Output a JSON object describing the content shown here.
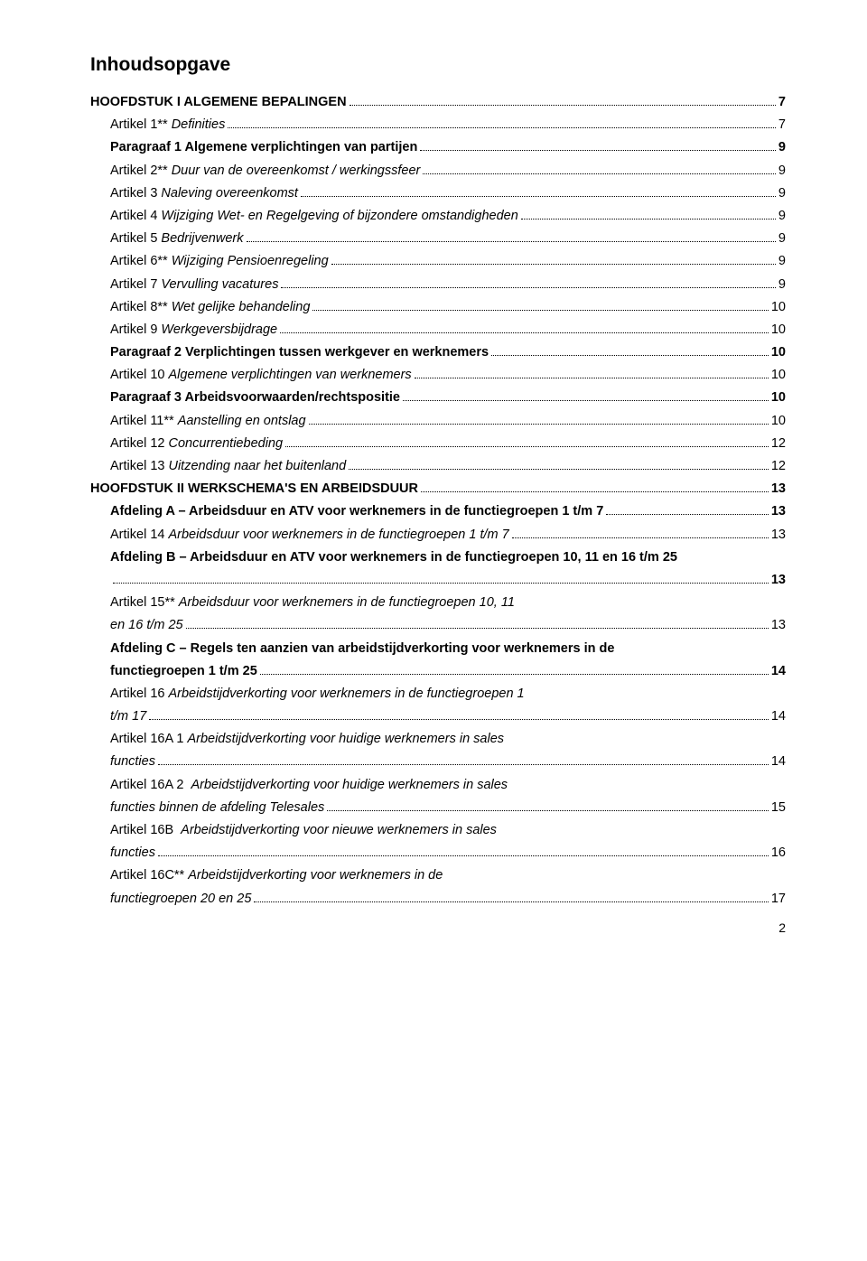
{
  "title": "Inhoudsopgave",
  "footerPage": "2",
  "toc": [
    {
      "level": 0,
      "bold": true,
      "plain": "HOOFDSTUK I ALGEMENE BEPALINGEN",
      "italic": "",
      "page": "7"
    },
    {
      "level": 1,
      "bold": false,
      "plain": "Artikel 1** ",
      "italic": "Definities",
      "page": "7"
    },
    {
      "level": 1,
      "bold": true,
      "plain": "Paragraaf 1 Algemene verplichtingen van partijen",
      "italic": "",
      "page": "9"
    },
    {
      "level": 1,
      "bold": false,
      "plain": "Artikel 2** ",
      "italic": "Duur van de overeenkomst / werkingssfeer",
      "page": "9"
    },
    {
      "level": 1,
      "bold": false,
      "plain": "Artikel 3 ",
      "italic": "Naleving overeenkomst",
      "page": "9"
    },
    {
      "level": 1,
      "bold": false,
      "plain": "Artikel 4 ",
      "italic": "Wijziging Wet- en Regelgeving of bijzondere omstandigheden",
      "page": "9"
    },
    {
      "level": 1,
      "bold": false,
      "plain": "Artikel 5 ",
      "italic": "Bedrijvenwerk",
      "page": "9"
    },
    {
      "level": 1,
      "bold": false,
      "plain": "Artikel 6** ",
      "italic": "Wijziging Pensioenregeling",
      "page": "9"
    },
    {
      "level": 1,
      "bold": false,
      "plain": "Artikel 7 ",
      "italic": "Vervulling vacatures",
      "page": "9"
    },
    {
      "level": 1,
      "bold": false,
      "plain": "Artikel 8** ",
      "italic": "Wet gelijke behandeling",
      "page": "10"
    },
    {
      "level": 1,
      "bold": false,
      "plain": "Artikel 9 ",
      "italic": "Werkgeversbijdrage",
      "page": "10"
    },
    {
      "level": 1,
      "bold": true,
      "plain": "Paragraaf 2 Verplichtingen tussen werkgever en werknemers",
      "italic": "",
      "page": "10"
    },
    {
      "level": 1,
      "bold": false,
      "plain": "Artikel 10 ",
      "italic": "Algemene verplichtingen van werknemers",
      "page": "10"
    },
    {
      "level": 1,
      "bold": true,
      "plain": "Paragraaf 3 Arbeidsvoorwaarden/rechtspositie",
      "italic": "",
      "page": "10"
    },
    {
      "level": 1,
      "bold": false,
      "plain": "Artikel 11** ",
      "italic": "Aanstelling en ontslag",
      "page": "10"
    },
    {
      "level": 1,
      "bold": false,
      "plain": "Artikel 12 ",
      "italic": "Concurrentiebeding",
      "page": "12"
    },
    {
      "level": 1,
      "bold": false,
      "plain": "Artikel 13 ",
      "italic": "Uitzending naar het buitenland",
      "page": "12"
    },
    {
      "level": 0,
      "bold": true,
      "plain": "HOOFDSTUK II WERKSCHEMA'S EN ARBEIDSDUUR",
      "italic": "",
      "page": "13"
    },
    {
      "level": 1,
      "bold": true,
      "plain": "Afdeling A – Arbeidsduur en ATV voor werknemers in de functiegroepen 1 t/m 7",
      "italic": "",
      "page": "13"
    },
    {
      "level": 1,
      "bold": false,
      "plain": "Artikel 14 ",
      "italic": "Arbeidsduur voor werknemers in de functiegroepen 1 t/m 7",
      "page": "13"
    },
    {
      "level": 1,
      "bold": true,
      "plain": "Afdeling B – Arbeidsduur en ATV voor werknemers in de functiegroepen 10, 11 en 16 t/m 25",
      "italic": "",
      "page": "",
      "multiline_first": true
    },
    {
      "level": 1,
      "bold": true,
      "plain": "",
      "italic": "",
      "page": "13",
      "multiline_cont": true
    },
    {
      "level": 1,
      "bold": false,
      "plain": "Artikel 15** ",
      "italic": "Arbeidsduur voor werknemers in de functiegroepen 10, 11",
      "page": "",
      "multiline_first": true
    },
    {
      "level": 1,
      "bold": false,
      "plain": "",
      "italic": "en 16 t/m 25",
      "page": "13",
      "multiline_cont": true
    },
    {
      "level": 1,
      "bold": true,
      "plain": "Afdeling C – Regels ten aanzien van arbeidstijdverkorting voor werknemers in de",
      "italic": "",
      "page": "",
      "multiline_first": true
    },
    {
      "level": 1,
      "bold": true,
      "plain": "functiegroepen 1 t/m 25",
      "italic": "",
      "page": "14",
      "multiline_cont": true
    },
    {
      "level": 1,
      "bold": false,
      "plain": "Artikel 16 ",
      "italic": "Arbeidstijdverkorting voor werknemers in de functiegroepen 1",
      "page": "",
      "multiline_first": true
    },
    {
      "level": 1,
      "bold": false,
      "plain": "",
      "italic": "t/m 17",
      "page": "14",
      "multiline_cont": true
    },
    {
      "level": 1,
      "bold": false,
      "plain": "Artikel 16A 1 ",
      "italic": "Arbeidstijdverkorting voor huidige werknemers in sales",
      "page": "",
      "multiline_first": true
    },
    {
      "level": 1,
      "bold": false,
      "plain": "",
      "italic": "functies",
      "page": "14",
      "multiline_cont": true
    },
    {
      "level": 1,
      "bold": false,
      "plain": "Artikel 16A 2  ",
      "italic": "Arbeidstijdverkorting voor huidige werknemers in sales",
      "page": "",
      "multiline_first": true
    },
    {
      "level": 1,
      "bold": false,
      "plain": "",
      "italic": "functies binnen de afdeling Telesales",
      "page": "15",
      "multiline_cont": true
    },
    {
      "level": 1,
      "bold": false,
      "plain": "Artikel 16B  ",
      "italic": "Arbeidstijdverkorting voor nieuwe werknemers in sales",
      "page": "",
      "multiline_first": true
    },
    {
      "level": 1,
      "bold": false,
      "plain": "",
      "italic": "functies",
      "page": "16",
      "multiline_cont": true
    },
    {
      "level": 1,
      "bold": false,
      "plain": "Artikel 16C** ",
      "italic": "Arbeidstijdverkorting voor werknemers in de",
      "page": "",
      "multiline_first": true
    },
    {
      "level": 1,
      "bold": false,
      "plain": "",
      "italic": "functiegroepen 20 en 25",
      "page": "17",
      "multiline_cont": true
    }
  ]
}
